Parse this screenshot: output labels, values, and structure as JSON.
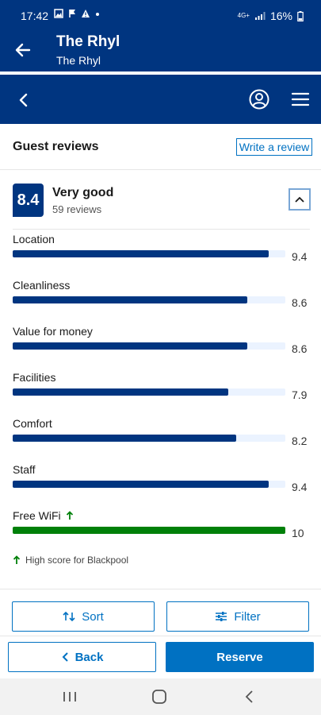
{
  "status_bar": {
    "time": "17:42",
    "network": "4G+",
    "battery": "16%"
  },
  "app_header": {
    "title": "The Rhyl",
    "subtitle": "The Rhyl"
  },
  "reviews": {
    "heading": "Guest reviews",
    "write_review": "Write a review",
    "score": "8.4",
    "score_word": "Very good",
    "review_count": "59 reviews",
    "categories": [
      {
        "label": "Location",
        "value": "9.4",
        "score": 9.4
      },
      {
        "label": "Cleanliness",
        "value": "8.6",
        "score": 8.6
      },
      {
        "label": "Value for money",
        "value": "8.6",
        "score": 8.6
      },
      {
        "label": "Facilities",
        "value": "7.9",
        "score": 7.9
      },
      {
        "label": "Comfort",
        "value": "8.2",
        "score": 8.2
      },
      {
        "label": "Staff",
        "value": "9.4",
        "score": 9.4
      },
      {
        "label": "Free WiFi",
        "value": "10",
        "score": 10,
        "highlight": true
      }
    ],
    "high_score_note": "High score for Blackpool"
  },
  "actions": {
    "sort": "Sort",
    "filter": "Filter",
    "back": "Back",
    "reserve": "Reserve"
  },
  "colors": {
    "brand_dark": "#003580",
    "brand_action": "#0071c2",
    "highlight_green": "#008009",
    "bar_track": "#ebf3ff"
  }
}
